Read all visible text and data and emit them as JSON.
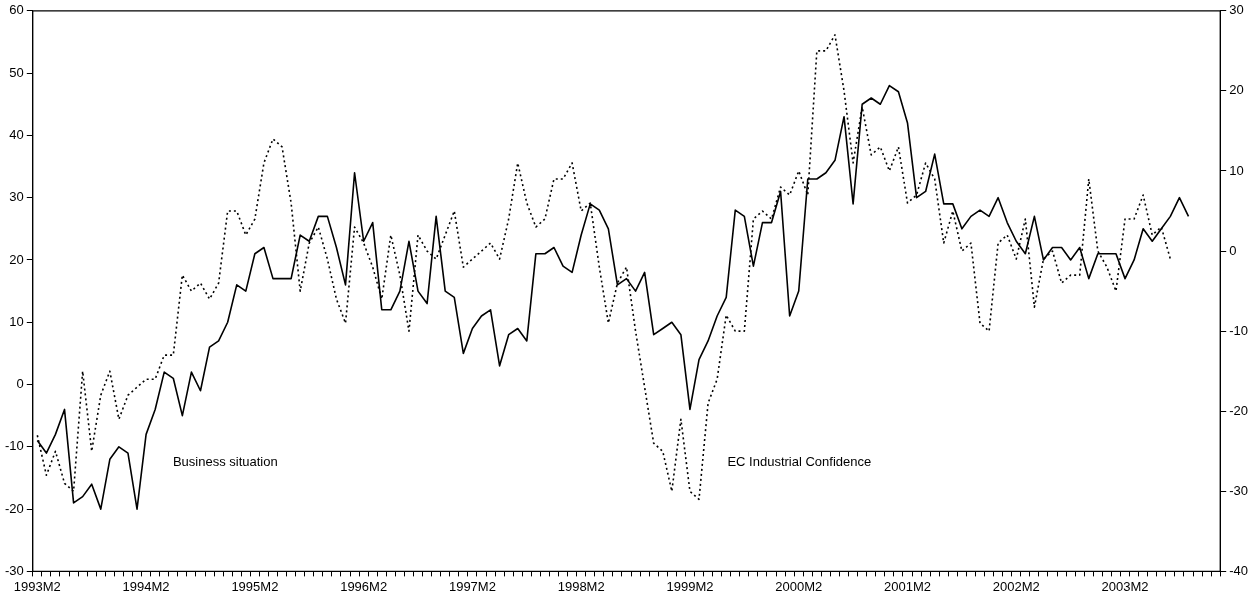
{
  "chart_data": {
    "type": "line",
    "categories": [
      "1993M2",
      null,
      null,
      null,
      null,
      null,
      null,
      null,
      null,
      null,
      null,
      null,
      "1994M2",
      null,
      null,
      null,
      null,
      null,
      null,
      null,
      null,
      null,
      null,
      null,
      "1995M2",
      null,
      null,
      null,
      null,
      null,
      null,
      null,
      null,
      null,
      null,
      null,
      "1996M2",
      null,
      null,
      null,
      null,
      null,
      null,
      null,
      null,
      null,
      null,
      null,
      "1997M2",
      null,
      null,
      null,
      null,
      null,
      null,
      null,
      null,
      null,
      null,
      null,
      "1998M2",
      null,
      null,
      null,
      null,
      null,
      null,
      null,
      null,
      null,
      null,
      null,
      "1999M2",
      null,
      null,
      null,
      null,
      null,
      null,
      null,
      null,
      null,
      null,
      null,
      "2000M2",
      null,
      null,
      null,
      null,
      null,
      null,
      null,
      null,
      null,
      null,
      null,
      "2001M2",
      null,
      null,
      null,
      null,
      null,
      null,
      null,
      null,
      null,
      null,
      null,
      "2002M2",
      null,
      null,
      null,
      null,
      null,
      null,
      null,
      null,
      null,
      null,
      null,
      "2003M2",
      null,
      null,
      null,
      null,
      null,
      null,
      null,
      null,
      null,
      null
    ],
    "series": [
      {
        "name": "Business situation",
        "color": "#000000",
        "line_style": "solid",
        "values": [
          -9,
          -11,
          -8,
          -4,
          -19,
          -18,
          -16,
          -20,
          -12,
          -10,
          -11,
          -20,
          -8,
          -4,
          2,
          1,
          -5,
          2,
          -1,
          6,
          7,
          10,
          16,
          15,
          21,
          22,
          17,
          17,
          17,
          24,
          23,
          27,
          27,
          22,
          16,
          34,
          23,
          26,
          12,
          12,
          15,
          23,
          15,
          13,
          27,
          15,
          14,
          5,
          9,
          11,
          12,
          3,
          8,
          9,
          7,
          21,
          21,
          22,
          19,
          18,
          24,
          29,
          28,
          25,
          16,
          17,
          15,
          18,
          8,
          9,
          10,
          8,
          -4,
          4,
          7,
          11,
          14,
          28,
          27,
          19,
          26,
          26,
          31,
          11,
          15,
          33,
          33,
          34,
          36,
          43,
          29,
          45,
          46,
          45,
          48,
          47,
          42,
          30,
          31,
          37,
          29,
          29,
          25,
          27,
          28,
          27,
          30,
          26,
          23,
          21,
          27,
          20,
          22,
          22,
          20,
          22,
          17,
          21,
          21,
          21,
          17,
          20,
          25,
          23,
          25,
          27,
          30,
          27,
          null,
          null,
          null
        ]
      },
      {
        "name": "EC Industrial Confidence",
        "color": "#000000",
        "line_style": "dotted",
        "axis": "y2",
        "values": [
          -23,
          -28,
          -25,
          -29,
          -30,
          -15,
          -25,
          -18,
          -15,
          -21,
          -18,
          -17,
          -16,
          -16,
          -13,
          -13,
          -3,
          -5,
          -4,
          -6,
          -4,
          5,
          5,
          2,
          4,
          11,
          14,
          13,
          6,
          -5,
          1,
          3,
          -1,
          -6,
          -9,
          3,
          1,
          -2,
          -6,
          2,
          -3,
          -10,
          2,
          0,
          -1,
          2,
          5,
          -2,
          -1,
          0,
          1,
          -1,
          4,
          11,
          6,
          3,
          4,
          9,
          9,
          11,
          5,
          6,
          -2,
          -9,
          -4,
          -2,
          -10,
          -17,
          -24,
          -25,
          -30,
          -21,
          -30,
          -31,
          -19,
          -16,
          -8,
          -10,
          -10,
          4,
          5,
          4,
          8,
          7,
          10,
          7,
          25,
          25,
          27,
          20,
          11,
          18,
          12,
          13,
          10,
          13,
          6,
          7,
          11,
          9,
          1,
          5,
          0,
          1,
          -9,
          -10,
          1,
          2,
          -1,
          4,
          -7,
          -1,
          0,
          -4,
          -3,
          -3,
          9,
          0,
          -2,
          -5,
          4,
          4,
          7,
          2,
          3,
          -1,
          null,
          null,
          null,
          null,
          null
        ]
      }
    ],
    "ylim": [
      -30,
      60
    ],
    "yticks": [
      -30,
      -20,
      -10,
      0,
      10,
      20,
      30,
      40,
      50,
      60
    ],
    "y2lim": [
      -40,
      30
    ],
    "y2ticks": [
      -40,
      -30,
      -20,
      -10,
      0,
      10,
      20,
      30
    ],
    "grid": false,
    "legend": false,
    "marker": "none"
  }
}
